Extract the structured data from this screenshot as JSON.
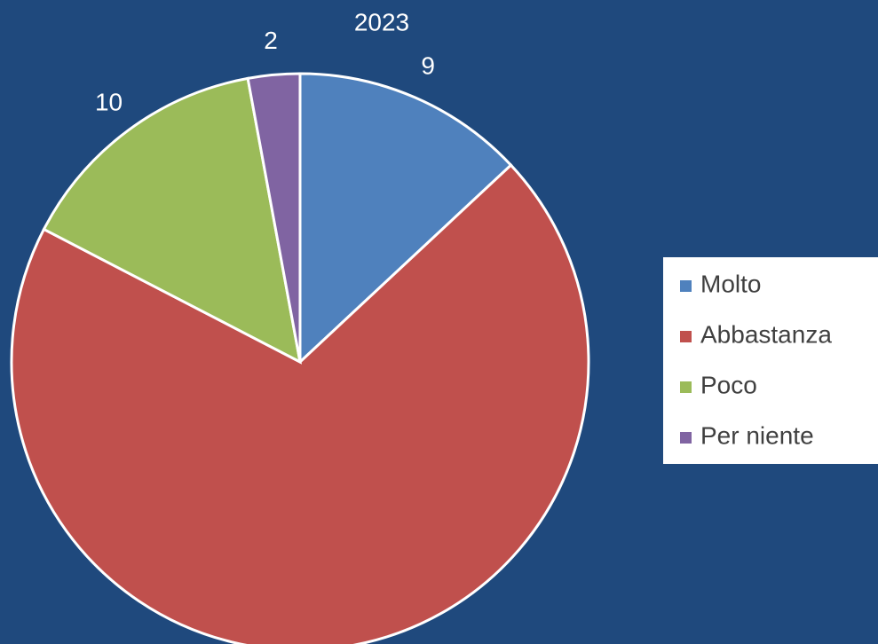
{
  "chart_data": {
    "type": "pie",
    "title": "2023",
    "categories": [
      "Molto",
      "Abbastanza",
      "Poco",
      "Per niente"
    ],
    "values": [
      9,
      48,
      10,
      2
    ],
    "value_labels": [
      "9",
      null,
      "10",
      "2"
    ],
    "colors": [
      "#4f81bd",
      "#c0504d",
      "#9bbb59",
      "#8064a2"
    ],
    "legend": "right"
  }
}
